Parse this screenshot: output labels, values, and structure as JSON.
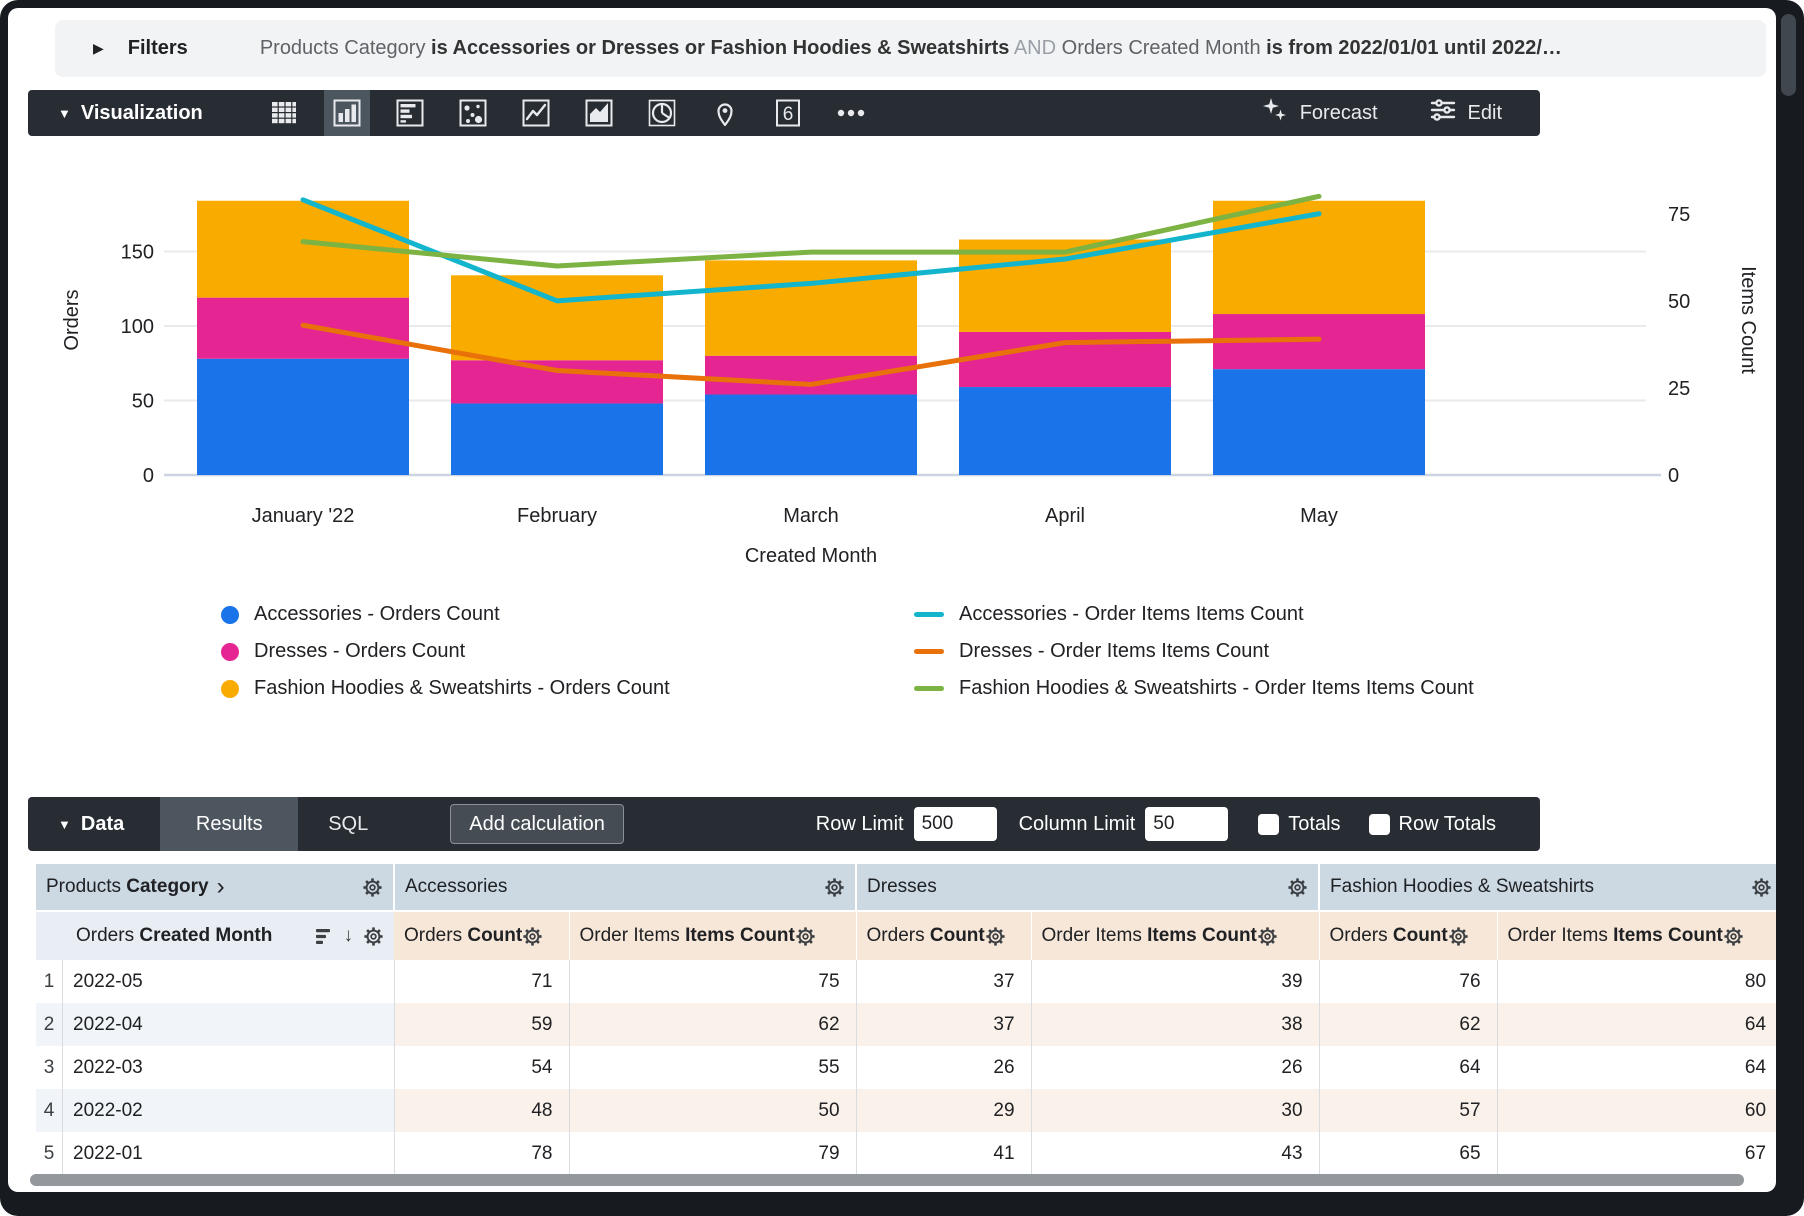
{
  "filters": {
    "label": "Filters",
    "parts": [
      {
        "text": "Products Category ",
        "style": "dim"
      },
      {
        "text": "is Accessories or Dresses or Fashion Hoodies & Sweatshirts",
        "style": "strong"
      },
      {
        "text": " AND ",
        "style": "faint"
      },
      {
        "text": "Orders Created Month ",
        "style": "dim"
      },
      {
        "text": "is from 2022/01/01 until 2022/…",
        "style": "strong"
      }
    ]
  },
  "viz": {
    "title": "Visualization",
    "selected_icon": "column",
    "single_value_glyph": "6",
    "forecast_label": "Forecast",
    "edit_label": "Edit"
  },
  "chart_data": {
    "type": "combo (stacked bar + line, dual axis)",
    "categories": [
      "January '22",
      "February",
      "March",
      "April",
      "May"
    ],
    "x_axis_label": "Created Month",
    "y_left": {
      "label": "Orders",
      "ticks": [
        0,
        50,
        100,
        150
      ],
      "max": 208
    },
    "y_right": {
      "label": "Items Count",
      "ticks": [
        0,
        25,
        50,
        75
      ],
      "max": 89
    },
    "grid": true,
    "legend_position": "bottom",
    "bar_series": [
      {
        "name": "Accessories - Orders Count",
        "color": "#1a73e8",
        "values": [
          78,
          48,
          54,
          59,
          71
        ]
      },
      {
        "name": "Dresses - Orders Count",
        "color": "#e52592",
        "values": [
          41,
          29,
          26,
          37,
          37
        ]
      },
      {
        "name": "Fashion Hoodies & Sweatshirts - Orders Count",
        "color": "#f9ab00",
        "values": [
          65,
          57,
          64,
          62,
          76
        ]
      }
    ],
    "line_series": [
      {
        "name": "Accessories - Order Items Items Count",
        "color": "#12b5cb",
        "values": [
          79,
          50,
          55,
          62,
          75
        ]
      },
      {
        "name": "Dresses - Order Items Items Count",
        "color": "#e8710a",
        "values": [
          43,
          30,
          26,
          38,
          39
        ]
      },
      {
        "name": "Fashion Hoodies & Sweatshirts - Order Items Items Count",
        "color": "#7cb342",
        "values": [
          67,
          60,
          64,
          64,
          80
        ]
      }
    ]
  },
  "data_bar": {
    "title": "Data",
    "results_tab": "Results",
    "sql_tab": "SQL",
    "add_calculation": "Add calculation",
    "row_limit_label": "Row Limit",
    "row_limit_value": "500",
    "column_limit_label": "Column Limit",
    "column_limit_value": "50",
    "totals_label": "Totals",
    "row_totals_label": "Row Totals"
  },
  "table": {
    "dimension_group": {
      "normal": "Products ",
      "bold": "Category",
      "chevron": "›"
    },
    "groups": [
      "Accessories",
      "Dresses",
      "Fashion Hoodies & Sweatshirts"
    ],
    "dimension_header": {
      "normal": "Orders ",
      "bold": "Created Month"
    },
    "measure_headers": [
      {
        "normal": "Orders ",
        "bold": "Count"
      },
      {
        "normal": "Order Items ",
        "bold": "Items Count"
      }
    ],
    "rows": [
      {
        "index": "1",
        "month": "2022-05",
        "values": [
          "71",
          "75",
          "37",
          "39",
          "76",
          "80"
        ]
      },
      {
        "index": "2",
        "month": "2022-04",
        "values": [
          "59",
          "62",
          "37",
          "38",
          "62",
          "64"
        ]
      },
      {
        "index": "3",
        "month": "2022-03",
        "values": [
          "54",
          "55",
          "26",
          "26",
          "64",
          "64"
        ]
      },
      {
        "index": "4",
        "month": "2022-02",
        "values": [
          "48",
          "50",
          "29",
          "30",
          "57",
          "60"
        ]
      },
      {
        "index": "5",
        "month": "2022-01",
        "values": [
          "78",
          "79",
          "41",
          "43",
          "65",
          "67"
        ]
      }
    ]
  }
}
